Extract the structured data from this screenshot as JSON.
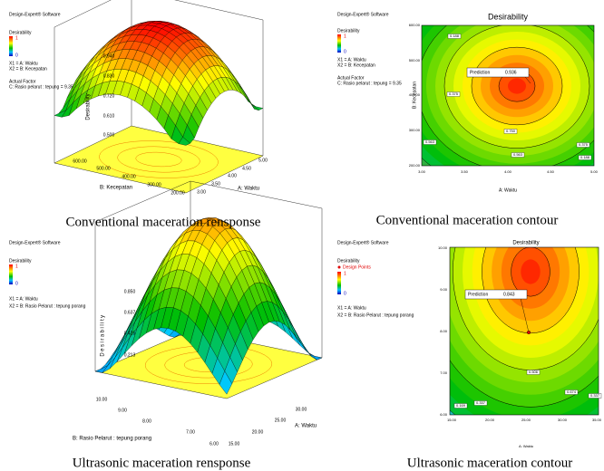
{
  "panels": [
    {
      "software": "Design-Expert® Software",
      "response": "Desirability",
      "legend_high": "1",
      "legend_low": "0",
      "x1": "X1 = A: Waktu",
      "x2": "X2 = B: Kecepatan",
      "actual_factor": "Actual Factor",
      "factor_c": "C: Rasio pelarut : tepung = 9.35",
      "z_axis": "Desirability",
      "z_ticks": [
        "0.940",
        "0.830",
        "0.720",
        "0.610",
        "0.500"
      ],
      "x_axis": "A: Waktu",
      "x_ticks": [
        "3.00",
        "3.50",
        "4.00",
        "4.50",
        "5.00"
      ],
      "y_axis": "B: Kecepatan",
      "y_ticks": [
        "200.00",
        "300.00",
        "400.00",
        "500.00",
        "600.00"
      ],
      "caption": "Conventional maceration rensponse"
    },
    {
      "software": "Design-Expert® Software",
      "response": "Desirability",
      "legend_high": "1",
      "legend_low": "0",
      "x1": "X1 = A: Waktu",
      "x2": "X2 = B: Kecepatan",
      "actual_factor": "Actual Factor",
      "factor_c": "C: Rasio pelarut : tepung = 9.35",
      "title": "Desirability",
      "x_axis": "A: Waktu",
      "x_ticks": [
        "3.00",
        "3.50",
        "4.00",
        "4.50",
        "5.00"
      ],
      "y_axis": "B: Kecepatan",
      "y_ticks": [
        "200.00",
        "300.00",
        "400.00",
        "500.00",
        "600.00"
      ],
      "prediction_label": "Prediction",
      "prediction_value": "0.936",
      "contour_labels": [
        "0.188",
        "0.375",
        "0.563",
        "0.750",
        "0.563",
        "0.375",
        "0.188"
      ],
      "caption": "Conventional maceration contour"
    },
    {
      "software": "Design-Expert® Software",
      "response": "Desirability",
      "legend_high": "1",
      "legend_low": "0",
      "x1": "X1 = A: Waktu",
      "x2": "X2 = B: Rasio Pelarut : tepung porang",
      "z_axis": "Desirability",
      "z_ticks": [
        "0.850",
        "0.637",
        "0.425",
        "0.213"
      ],
      "x_axis": "A: Waktu",
      "x_ticks": [
        "15.00",
        "20.00",
        "25.00",
        "30.00"
      ],
      "y_axis": "B: Rasio Pelarut : tepung porang",
      "y_ticks": [
        "6.00",
        "7.00",
        "8.00",
        "9.00",
        "10.00"
      ],
      "caption": "Ultrasonic maceration rensponse"
    },
    {
      "software": "Design-Expert® Software",
      "response": "Desirability",
      "design_points": "Design Points",
      "legend_high": "1",
      "legend_low": "0",
      "x1": "X1 = A: Waktu",
      "x2": "X2 = B: Rasio Pelarut : tepung porang",
      "title": "Desirability",
      "x_axis": "A: Waktu",
      "x_ticks": [
        "15.00",
        "20.00",
        "25.00",
        "30.00",
        "35.00"
      ],
      "y_ticks": [
        "6.00",
        "7.00",
        "8.00",
        "9.00",
        "10.00"
      ],
      "prediction_label": "Prediction",
      "prediction_value": "0.843",
      "contour_labels": [
        "0.169",
        "0.337",
        "0.506",
        "0.674",
        "0.337"
      ],
      "caption": "Ultrasonic maceration contour"
    }
  ]
}
